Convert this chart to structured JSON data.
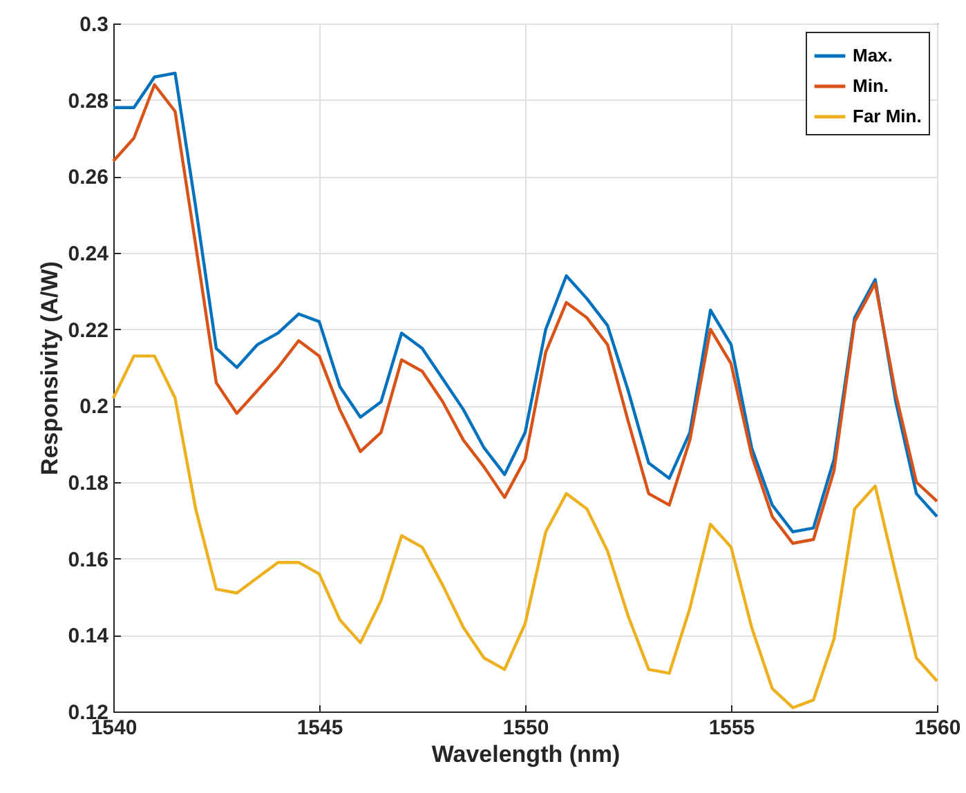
{
  "chart_data": {
    "type": "line",
    "xlabel": "Wavelength (nm)",
    "ylabel": "Responsivity (A/W)",
    "x": [
      1540,
      1540.5,
      1541,
      1541.5,
      1542,
      1542.5,
      1543,
      1543.5,
      1544,
      1544.5,
      1545,
      1545.5,
      1546,
      1546.5,
      1547,
      1547.5,
      1548,
      1548.5,
      1549,
      1549.5,
      1550,
      1550.5,
      1551,
      1551.5,
      1552,
      1552.5,
      1553,
      1553.5,
      1554,
      1554.5,
      1555,
      1555.5,
      1556,
      1556.5,
      1557,
      1557.5,
      1558,
      1558.5,
      1559,
      1559.5,
      1560
    ],
    "series": [
      {
        "name": "Max.",
        "color": "#0072bd",
        "values": [
          0.278,
          0.278,
          0.286,
          0.287,
          0.252,
          0.215,
          0.21,
          0.216,
          0.219,
          0.224,
          0.222,
          0.205,
          0.197,
          0.201,
          0.219,
          0.215,
          0.207,
          0.199,
          0.189,
          0.182,
          0.193,
          0.22,
          0.234,
          0.228,
          0.221,
          0.204,
          0.185,
          0.181,
          0.193,
          0.225,
          0.216,
          0.189,
          0.174,
          0.167,
          0.168,
          0.186,
          0.223,
          0.233,
          0.201,
          0.177,
          0.171
        ]
      },
      {
        "name": "Min.",
        "color": "#d95319",
        "values": [
          0.264,
          0.27,
          0.284,
          0.277,
          0.242,
          0.206,
          0.198,
          0.204,
          0.21,
          0.217,
          0.213,
          0.199,
          0.188,
          0.193,
          0.212,
          0.209,
          0.201,
          0.191,
          0.184,
          0.176,
          0.186,
          0.214,
          0.227,
          0.223,
          0.216,
          0.196,
          0.177,
          0.174,
          0.191,
          0.22,
          0.211,
          0.187,
          0.171,
          0.164,
          0.165,
          0.183,
          0.222,
          0.232,
          0.203,
          0.18,
          0.175
        ]
      },
      {
        "name": "Far Min.",
        "color": "#edb120",
        "values": [
          0.202,
          0.213,
          0.213,
          0.202,
          0.173,
          0.152,
          0.151,
          0.155,
          0.159,
          0.159,
          0.156,
          0.144,
          0.138,
          0.149,
          0.166,
          0.163,
          0.153,
          0.142,
          0.134,
          0.131,
          0.143,
          0.167,
          0.177,
          0.173,
          0.162,
          0.145,
          0.131,
          0.13,
          0.147,
          0.169,
          0.163,
          0.142,
          0.126,
          0.121,
          0.123,
          0.139,
          0.173,
          0.179,
          0.156,
          0.134,
          0.128
        ]
      }
    ],
    "xlim": [
      1540,
      1560
    ],
    "xticks": [
      1540,
      1545,
      1550,
      1555,
      1560
    ],
    "ylim": [
      0.12,
      0.3
    ],
    "yticks": [
      0.12,
      0.14,
      0.16,
      0.18,
      0.2,
      0.22,
      0.24,
      0.26,
      0.28,
      0.3
    ],
    "grid": true,
    "legend": "top right",
    "line_style": "solid",
    "marker": "none"
  }
}
